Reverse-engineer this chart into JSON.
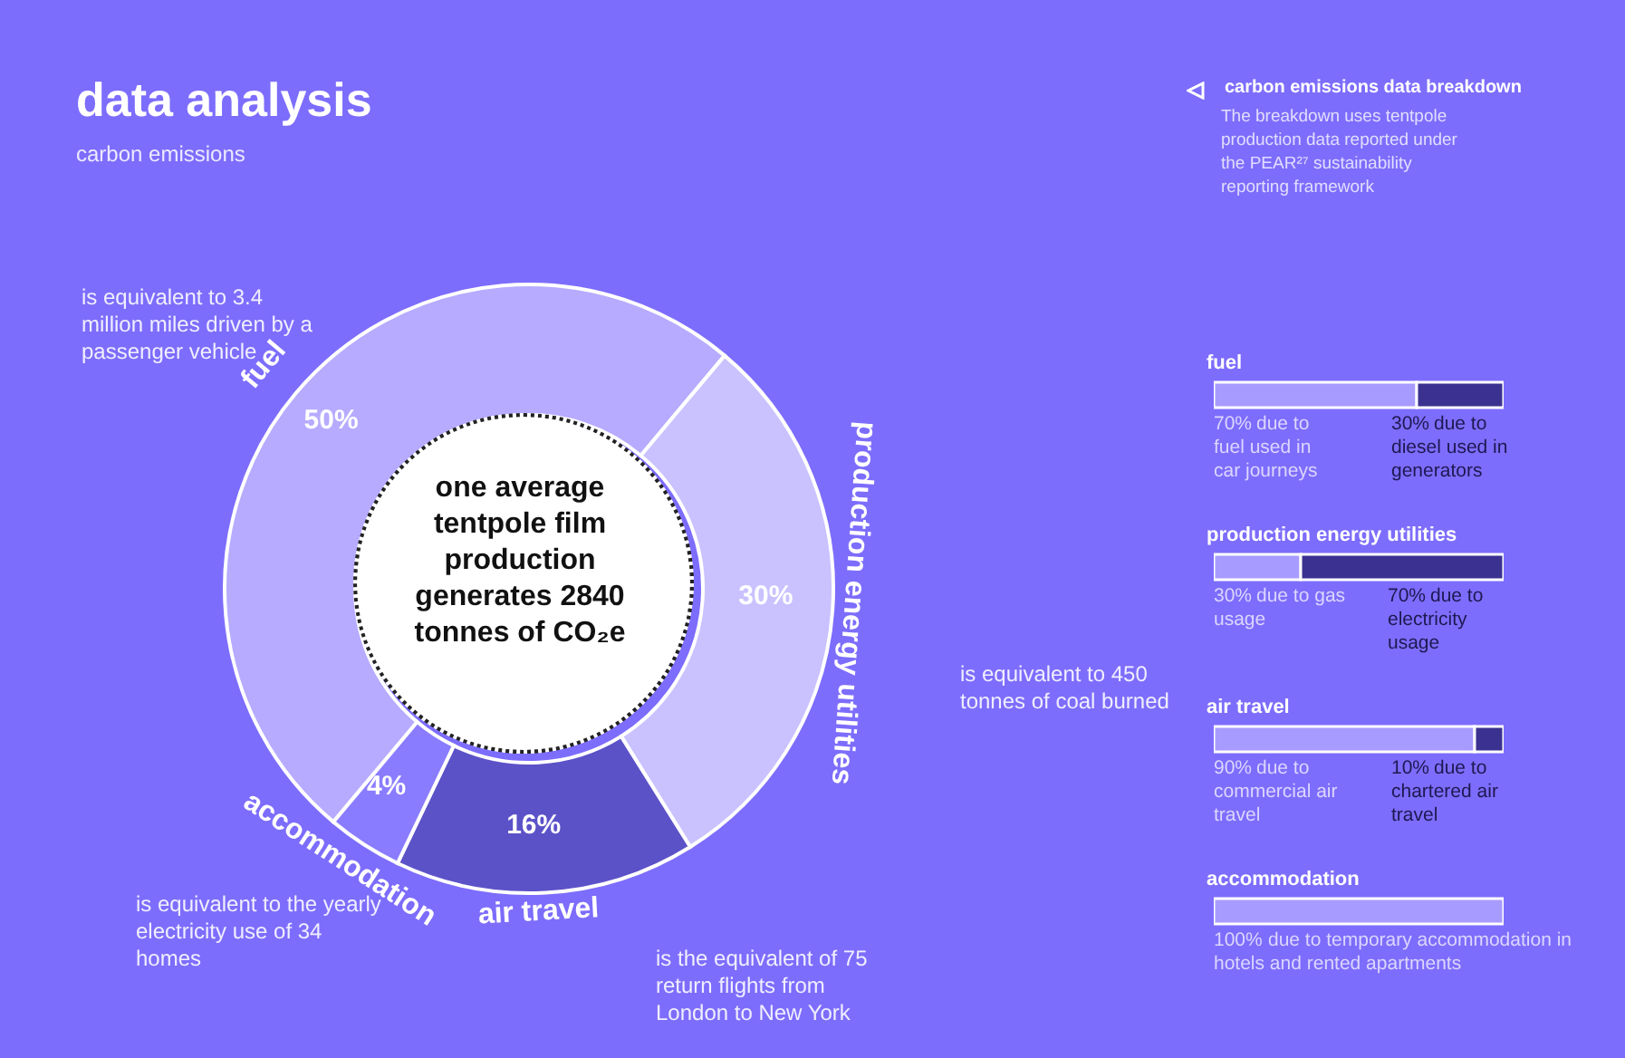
{
  "chart_data": [
    {
      "type": "donut",
      "title": "data analysis",
      "subtitle": "carbon emissions",
      "categories": [
        "fuel",
        "production energy utilities",
        "air travel",
        "accommodation"
      ],
      "values": [
        50,
        30,
        16,
        4
      ],
      "colors": [
        "#b6abff",
        "#c9c2ff",
        "#5c52c8",
        "#8a7cff"
      ],
      "value_labels": [
        "50%",
        "30%",
        "16%",
        "4%"
      ],
      "annotations": [
        "one average tentpole film production generates 2840 tonnes of CO₂e",
        "is equivalent to 3.4 million miles driven by a passenger vehicle",
        "is equivalent to 450 tonnes of coal burned",
        "is the equivalent of 75 return flights from London to New York",
        "is equivalent to the yearly electricity use of 34 homes"
      ]
    },
    {
      "type": "bar",
      "orientation": "horizontal",
      "stacked": true,
      "title": "carbon emissions data breakdown",
      "annotations": [
        "The breakdown uses tentpole production data reported under the PEAR²⁷ sustainability reporting framework",
        "due to fuel used in car journeys",
        "due to diesel used in generators",
        "due to gas usage",
        "due to electricity usage",
        "due to commercial air travel",
        "due to chartered air travel",
        "due to temporary accommodation in hotels and rented apartments"
      ],
      "categories": [
        "fuel",
        "production energy utilities",
        "air travel",
        "accommodation"
      ],
      "xlim": [
        0,
        100
      ],
      "tick_labels": "y",
      "series": [
        {
          "color": "#a89bff",
          "values": [
            70,
            30,
            90,
            100
          ],
          "value_labels": [
            "70%",
            "30%",
            "90%",
            "100%"
          ]
        },
        {
          "color": "#3b3190",
          "values": [
            30,
            70,
            10,
            null
          ],
          "value_labels": [
            "30%",
            "70%",
            "10%",
            null
          ]
        }
      ]
    }
  ]
}
